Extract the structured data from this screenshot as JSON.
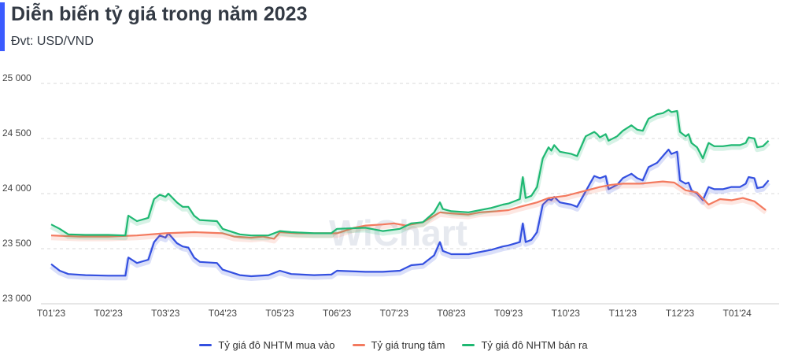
{
  "header": {
    "title": "Diễn biến tỷ giá trong năm 2023",
    "subtitle": "Đvt: USD/VND"
  },
  "watermark": "WiChart",
  "chart_data": {
    "type": "line",
    "title": "Diễn biến tỷ giá trong năm 2023",
    "subtitle": "Đvt: USD/VND",
    "ylim": [
      23000,
      25000
    ],
    "y_ticks": [
      23000,
      23500,
      24000,
      24500,
      25000
    ],
    "y_tick_labels": [
      "23 000",
      "23 500",
      "24 000",
      "24 500",
      "25 000"
    ],
    "x_range": [
      0,
      12.5
    ],
    "x_ticks": [
      "T01'23",
      "T02'23",
      "T03'23",
      "T04'23",
      "T05'23",
      "T06'23",
      "T07'23",
      "T08'23",
      "T09'23",
      "T10'23",
      "T11'23",
      "T12'23",
      "T01'24"
    ],
    "grid": true,
    "legend_position": "bottom",
    "series": [
      {
        "name": "Tỷ giá đô NHTM mua vào",
        "color": "#3450e0",
        "points": [
          [
            0,
            23360
          ],
          [
            0.15,
            23300
          ],
          [
            0.3,
            23270
          ],
          [
            0.6,
            23260
          ],
          [
            1.0,
            23255
          ],
          [
            1.3,
            23255
          ],
          [
            1.35,
            23420
          ],
          [
            1.5,
            23370
          ],
          [
            1.7,
            23400
          ],
          [
            1.8,
            23560
          ],
          [
            1.9,
            23620
          ],
          [
            2.0,
            23600
          ],
          [
            2.05,
            23640
          ],
          [
            2.2,
            23550
          ],
          [
            2.3,
            23520
          ],
          [
            2.4,
            23510
          ],
          [
            2.5,
            23420
          ],
          [
            2.6,
            23380
          ],
          [
            2.9,
            23370
          ],
          [
            3.0,
            23310
          ],
          [
            3.3,
            23260
          ],
          [
            3.5,
            23250
          ],
          [
            3.8,
            23260
          ],
          [
            4.0,
            23300
          ],
          [
            4.2,
            23270
          ],
          [
            4.6,
            23260
          ],
          [
            4.9,
            23265
          ],
          [
            5.0,
            23300
          ],
          [
            5.5,
            23290
          ],
          [
            5.8,
            23290
          ],
          [
            6.1,
            23300
          ],
          [
            6.3,
            23350
          ],
          [
            6.5,
            23360
          ],
          [
            6.7,
            23440
          ],
          [
            6.8,
            23560
          ],
          [
            6.85,
            23480
          ],
          [
            7.0,
            23450
          ],
          [
            7.3,
            23450
          ],
          [
            7.7,
            23490
          ],
          [
            7.9,
            23520
          ],
          [
            8.0,
            23530
          ],
          [
            8.2,
            23560
          ],
          [
            8.25,
            23730
          ],
          [
            8.3,
            23560
          ],
          [
            8.4,
            23580
          ],
          [
            8.5,
            23650
          ],
          [
            8.6,
            23900
          ],
          [
            8.7,
            23950
          ],
          [
            8.75,
            23940
          ],
          [
            8.8,
            23970
          ],
          [
            8.9,
            23920
          ],
          [
            9.1,
            23900
          ],
          [
            9.2,
            23880
          ],
          [
            9.35,
            24020
          ],
          [
            9.5,
            24160
          ],
          [
            9.55,
            24150
          ],
          [
            9.6,
            24140
          ],
          [
            9.7,
            24160
          ],
          [
            9.75,
            24040
          ],
          [
            9.9,
            24080
          ],
          [
            10.0,
            24140
          ],
          [
            10.15,
            24180
          ],
          [
            10.25,
            24140
          ],
          [
            10.35,
            24120
          ],
          [
            10.45,
            24240
          ],
          [
            10.6,
            24280
          ],
          [
            10.7,
            24340
          ],
          [
            10.8,
            24400
          ],
          [
            10.85,
            24360
          ],
          [
            10.95,
            24380
          ],
          [
            11.0,
            24120
          ],
          [
            11.1,
            24090
          ],
          [
            11.15,
            24100
          ],
          [
            11.2,
            24030
          ],
          [
            11.3,
            24000
          ],
          [
            11.4,
            23940
          ],
          [
            11.5,
            24060
          ],
          [
            11.6,
            24040
          ],
          [
            11.75,
            24040
          ],
          [
            11.9,
            24060
          ],
          [
            12.05,
            24060
          ],
          [
            12.15,
            24090
          ],
          [
            12.2,
            24150
          ],
          [
            12.3,
            24140
          ],
          [
            12.35,
            24050
          ],
          [
            12.45,
            24060
          ],
          [
            12.55,
            24120
          ]
        ]
      },
      {
        "name": "Tỷ giá trung tâm",
        "color": "#f37a5f",
        "points": [
          [
            0,
            23620
          ],
          [
            0.5,
            23610
          ],
          [
            1.0,
            23610
          ],
          [
            1.5,
            23620
          ],
          [
            2.0,
            23640
          ],
          [
            2.5,
            23650
          ],
          [
            3.0,
            23640
          ],
          [
            3.2,
            23610
          ],
          [
            3.5,
            23600
          ],
          [
            3.7,
            23610
          ],
          [
            3.9,
            23590
          ],
          [
            4.0,
            23650
          ],
          [
            4.3,
            23640
          ],
          [
            4.6,
            23640
          ],
          [
            5.0,
            23640
          ],
          [
            5.3,
            23690
          ],
          [
            5.5,
            23710
          ],
          [
            5.8,
            23720
          ],
          [
            6.0,
            23730
          ],
          [
            6.2,
            23710
          ],
          [
            6.5,
            23740
          ],
          [
            6.8,
            23830
          ],
          [
            7.0,
            23820
          ],
          [
            7.3,
            23810
          ],
          [
            7.5,
            23830
          ],
          [
            7.8,
            23840
          ],
          [
            8.0,
            23850
          ],
          [
            8.2,
            23880
          ],
          [
            8.5,
            23920
          ],
          [
            8.7,
            23960
          ],
          [
            9.0,
            23980
          ],
          [
            9.3,
            24020
          ],
          [
            9.6,
            24060
          ],
          [
            9.8,
            24080
          ],
          [
            10.0,
            24090
          ],
          [
            10.3,
            24090
          ],
          [
            10.5,
            24100
          ],
          [
            10.7,
            24110
          ],
          [
            10.9,
            24100
          ],
          [
            11.1,
            24030
          ],
          [
            11.3,
            24010
          ],
          [
            11.5,
            23900
          ],
          [
            11.7,
            23950
          ],
          [
            11.9,
            23940
          ],
          [
            12.1,
            23960
          ],
          [
            12.3,
            23930
          ],
          [
            12.5,
            23850
          ]
        ]
      },
      {
        "name": "Tỷ giá đô NHTM bán ra",
        "color": "#1fb872",
        "points": [
          [
            0,
            23720
          ],
          [
            0.15,
            23680
          ],
          [
            0.3,
            23630
          ],
          [
            0.6,
            23625
          ],
          [
            1.0,
            23625
          ],
          [
            1.3,
            23620
          ],
          [
            1.35,
            23800
          ],
          [
            1.5,
            23750
          ],
          [
            1.7,
            23780
          ],
          [
            1.8,
            23950
          ],
          [
            1.9,
            23990
          ],
          [
            2.0,
            23970
          ],
          [
            2.05,
            24000
          ],
          [
            2.2,
            23920
          ],
          [
            2.3,
            23880
          ],
          [
            2.4,
            23880
          ],
          [
            2.5,
            23800
          ],
          [
            2.6,
            23760
          ],
          [
            2.9,
            23750
          ],
          [
            3.0,
            23680
          ],
          [
            3.3,
            23630
          ],
          [
            3.5,
            23620
          ],
          [
            3.8,
            23620
          ],
          [
            4.0,
            23660
          ],
          [
            4.2,
            23650
          ],
          [
            4.6,
            23640
          ],
          [
            4.9,
            23640
          ],
          [
            5.0,
            23680
          ],
          [
            5.5,
            23690
          ],
          [
            5.8,
            23660
          ],
          [
            6.1,
            23680
          ],
          [
            6.3,
            23730
          ],
          [
            6.5,
            23740
          ],
          [
            6.7,
            23830
          ],
          [
            6.8,
            23920
          ],
          [
            6.85,
            23860
          ],
          [
            7.0,
            23840
          ],
          [
            7.3,
            23830
          ],
          [
            7.7,
            23870
          ],
          [
            7.9,
            23900
          ],
          [
            8.0,
            23910
          ],
          [
            8.2,
            23950
          ],
          [
            8.25,
            24150
          ],
          [
            8.3,
            23960
          ],
          [
            8.4,
            23980
          ],
          [
            8.5,
            24060
          ],
          [
            8.6,
            24320
          ],
          [
            8.7,
            24420
          ],
          [
            8.75,
            24390
          ],
          [
            8.8,
            24440
          ],
          [
            8.9,
            24380
          ],
          [
            9.1,
            24360
          ],
          [
            9.2,
            24340
          ],
          [
            9.35,
            24520
          ],
          [
            9.5,
            24560
          ],
          [
            9.55,
            24540
          ],
          [
            9.6,
            24510
          ],
          [
            9.7,
            24540
          ],
          [
            9.75,
            24480
          ],
          [
            9.9,
            24520
          ],
          [
            10.0,
            24570
          ],
          [
            10.15,
            24620
          ],
          [
            10.25,
            24580
          ],
          [
            10.35,
            24570
          ],
          [
            10.45,
            24680
          ],
          [
            10.6,
            24720
          ],
          [
            10.7,
            24730
          ],
          [
            10.8,
            24760
          ],
          [
            10.85,
            24740
          ],
          [
            10.95,
            24750
          ],
          [
            11.0,
            24560
          ],
          [
            11.1,
            24520
          ],
          [
            11.15,
            24540
          ],
          [
            11.2,
            24460
          ],
          [
            11.3,
            24420
          ],
          [
            11.4,
            24320
          ],
          [
            11.5,
            24460
          ],
          [
            11.6,
            24430
          ],
          [
            11.75,
            24430
          ],
          [
            11.9,
            24440
          ],
          [
            12.05,
            24440
          ],
          [
            12.15,
            24460
          ],
          [
            12.2,
            24510
          ],
          [
            12.3,
            24500
          ],
          [
            12.35,
            24420
          ],
          [
            12.45,
            24430
          ],
          [
            12.55,
            24480
          ]
        ]
      }
    ]
  }
}
